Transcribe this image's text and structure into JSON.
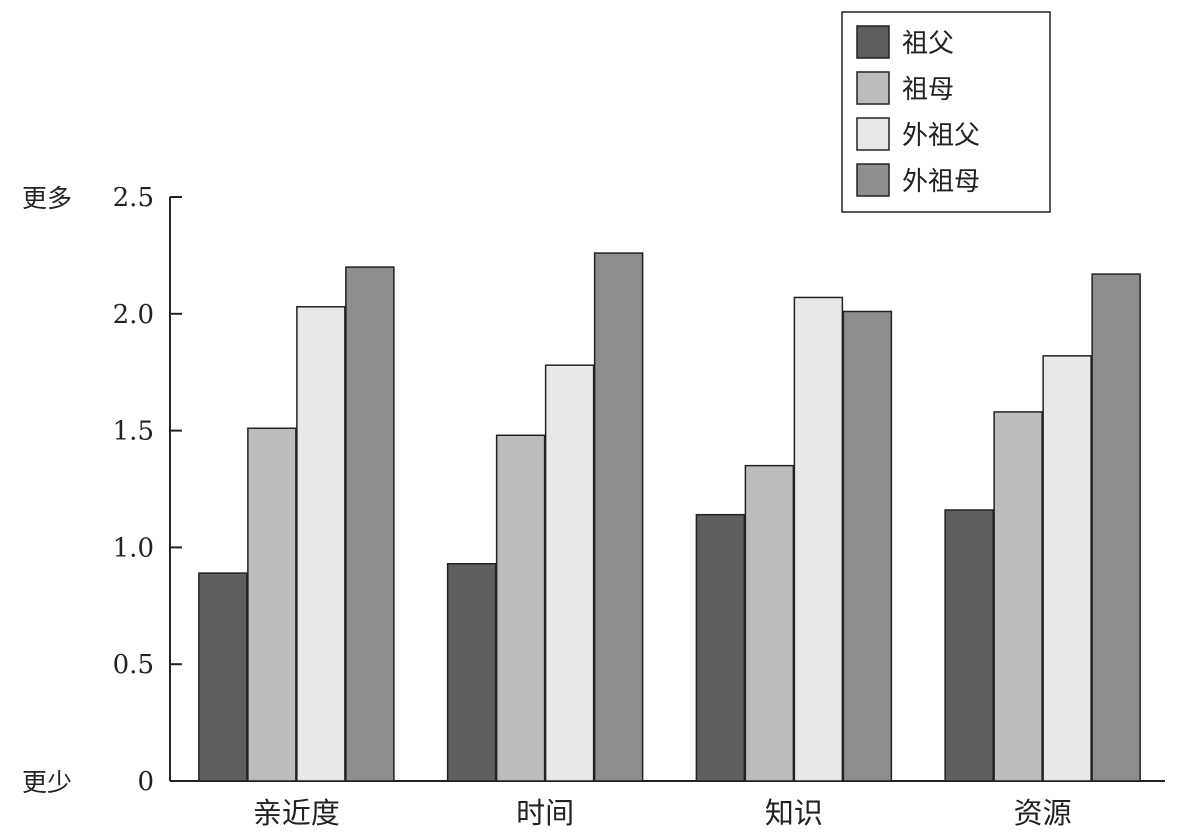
{
  "chart_data": {
    "type": "bar",
    "categories": [
      "亲近度",
      "时间",
      "知识",
      "资源"
    ],
    "series": [
      {
        "name": "祖父",
        "color": "#5f5f5f",
        "values": [
          0.89,
          0.93,
          1.14,
          1.16
        ]
      },
      {
        "name": "祖母",
        "color": "#bcbcbc",
        "values": [
          1.51,
          1.48,
          1.35,
          1.58
        ]
      },
      {
        "name": "外祖父",
        "color": "#e8e8e8",
        "values": [
          2.03,
          1.78,
          2.07,
          1.82
        ]
      },
      {
        "name": "外祖母",
        "color": "#8d8d8d",
        "values": [
          2.2,
          2.26,
          2.01,
          2.17
        ]
      }
    ],
    "yticks": [
      "0",
      "0.5",
      "1.0",
      "1.5",
      "2.0",
      "2.5"
    ],
    "ylim": [
      0,
      2.5
    ],
    "y_top_label": "更多",
    "y_bottom_label": "更少",
    "legend_position": "top-right",
    "grid": false
  }
}
